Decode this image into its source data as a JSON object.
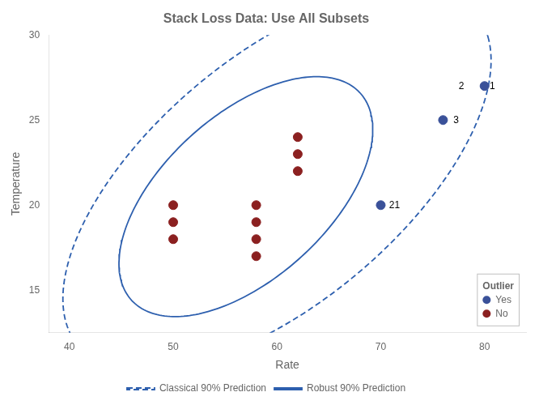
{
  "chart_data": {
    "type": "scatter",
    "title": "Stack Loss Data: Use All Subsets",
    "xlabel": "Rate",
    "ylabel": "Temperature",
    "xlim": [
      38,
      84
    ],
    "ylim": [
      12.5,
      30
    ],
    "xticks": [
      40,
      50,
      60,
      70,
      80
    ],
    "yticks": [
      15,
      20,
      25,
      30
    ],
    "grid": false,
    "legend": "lower right",
    "legend_title": "Outlier",
    "series": [
      {
        "name": "No",
        "color": "#8b2020",
        "x": [
          50,
          50,
          50,
          58,
          58,
          58,
          58,
          62,
          62,
          62
        ],
        "y": [
          20,
          19,
          18,
          20,
          19,
          18,
          17,
          24,
          23,
          22
        ]
      },
      {
        "name": "Yes",
        "color": "#3a5199",
        "x": [
          70,
          76,
          80
        ],
        "y": [
          20,
          25,
          27
        ]
      }
    ],
    "ellipses": [
      {
        "name": "Classical 90% Prediction",
        "color": "#2d5fae",
        "line_style": "dashed",
        "cx": 60.0,
        "cy": 21.5,
        "width": 44,
        "height": 16.5,
        "angle": 22
      },
      {
        "name": "Robust 90% Prediction",
        "color": "#2d5fae",
        "line_style": "solid",
        "cx": 57.0,
        "cy": 20.5,
        "width": 26,
        "height": 11,
        "angle": 22
      }
    ],
    "annotations": [
      {
        "text": "21",
        "x": 70.8,
        "y": 20.0
      },
      {
        "text": "3",
        "x": 77.0,
        "y": 25.0
      },
      {
        "text": "2",
        "x": 77.5,
        "y": 27.0
      },
      {
        "text": "1",
        "x": 80.5,
        "y": 27.0
      }
    ]
  }
}
